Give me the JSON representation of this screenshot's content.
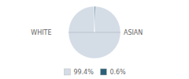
{
  "chart_data": {
    "type": "pie",
    "categories": [
      "WHITE",
      "ASIAN"
    ],
    "values": [
      99.4,
      0.6
    ],
    "value_labels": [
      "99.4%",
      "0.6%"
    ],
    "colors": [
      "#d4dce6",
      "#2d5f78"
    ],
    "legend": "bottom"
  }
}
